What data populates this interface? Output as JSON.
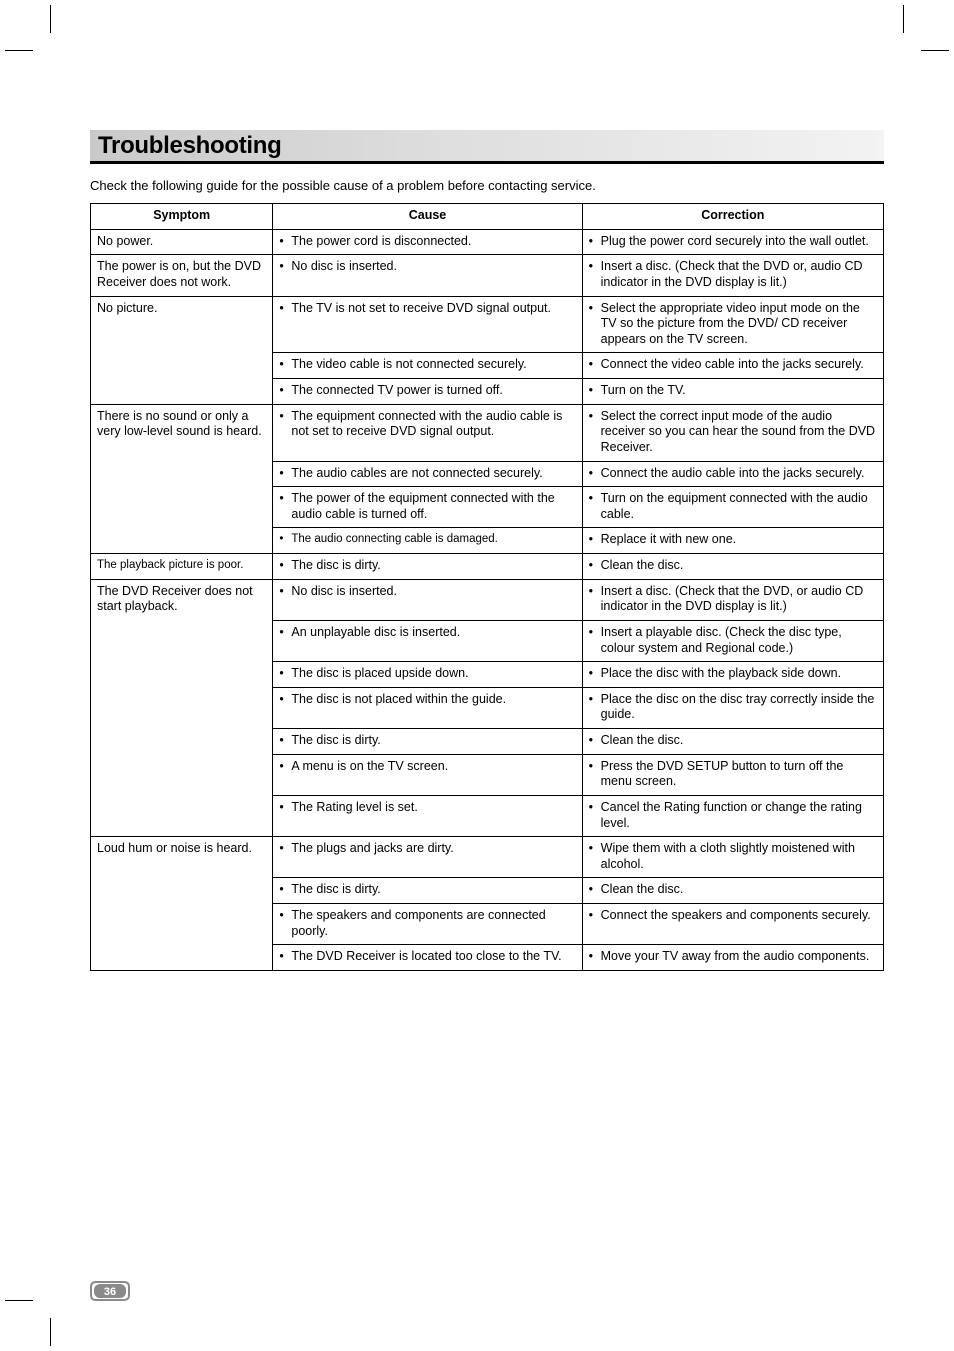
{
  "heading": "Troubleshooting",
  "intro": "Check the following guide for the possible cause of a problem before contacting service.",
  "columns": [
    "Symptom",
    "Cause",
    "Correction"
  ],
  "page_number": "36",
  "colors": {
    "heading_gradient_start": "#c9c9c9",
    "heading_gradient_end": "#f3f3f3",
    "heading_underline": "#000000",
    "border": "#000000",
    "text": "#000000",
    "background": "#ffffff",
    "badge_fill": "#8a8a8a"
  },
  "typography": {
    "heading_size_pt": 18,
    "body_size_pt": 9,
    "header_weight": "bold"
  },
  "rows": [
    {
      "symptom": "No power.",
      "symptom_rowspan": 1,
      "cause": "The power cord is disconnected.",
      "correction": "Plug the power cord securely into the wall outlet."
    },
    {
      "symptom": "The power is on, but the DVD Receiver does not work.",
      "symptom_rowspan": 1,
      "cause": "No disc is inserted.",
      "correction": "Insert a disc. (Check that the DVD or, audio CD indicator in the DVD display is lit.)"
    },
    {
      "symptom": "No picture.",
      "symptom_rowspan": 3,
      "cause": "The TV is not set to receive DVD signal output.",
      "correction": "Select the appropriate video input mode on the TV so the picture from the DVD/ CD receiver appears on the TV screen."
    },
    {
      "cause": "The video cable is not connected securely.",
      "correction": "Connect the video cable into the jacks securely."
    },
    {
      "cause": "The connected TV power is turned off.",
      "correction": "Turn on the TV."
    },
    {
      "symptom": "There is no sound or only a very low-level sound is heard.",
      "symptom_rowspan": 4,
      "cause": "The equipment connected with the audio cable is not set to receive DVD signal output.",
      "correction": "Select the correct input mode of the audio receiver so you can hear the sound from the DVD Receiver."
    },
    {
      "cause": "The audio cables are not connected securely.",
      "correction": "Connect the audio cable into the jacks securely."
    },
    {
      "cause": "The power of the equipment connected with the audio cable is turned off.",
      "correction": "Turn on the equipment connected with the audio cable."
    },
    {
      "cause": "The audio connecting cable is damaged.",
      "correction": "Replace it with new one."
    },
    {
      "symptom": "The playback picture is  poor.",
      "symptom_rowspan": 1,
      "cause": "The disc is dirty.",
      "correction": "Clean the disc."
    },
    {
      "symptom": "The DVD Receiver does not start playback.",
      "symptom_rowspan": 7,
      "cause": "No disc is inserted.",
      "correction": "Insert a disc. (Check that the DVD, or audio CD indicator in the DVD display is lit.)"
    },
    {
      "cause": "An unplayable disc is inserted.",
      "correction": "Insert a playable disc. (Check the disc type, colour system and Regional code.)"
    },
    {
      "cause": "The disc is placed upside down.",
      "correction": "Place the disc with the playback side down."
    },
    {
      "cause": "The disc is not placed within the guide.",
      "correction": "Place the disc on the disc tray correctly inside the guide."
    },
    {
      "cause": "The disc is dirty.",
      "correction": "Clean the disc."
    },
    {
      "cause": "A menu is on the TV screen.",
      "correction": "Press the DVD SETUP button to turn off the menu screen."
    },
    {
      "cause": "The Rating level is set.",
      "correction": "Cancel the Rating function or change the rating level."
    },
    {
      "symptom": "Loud hum or noise is heard.",
      "symptom_rowspan": 4,
      "cause": "The plugs and jacks are dirty.",
      "correction": "Wipe them with a cloth slightly moistened with alcohol."
    },
    {
      "cause": "The disc is dirty.",
      "correction": "Clean the disc."
    },
    {
      "cause": "The speakers and components are connected poorly.",
      "correction": "Connect the speakers and components securely."
    },
    {
      "cause": "The DVD Receiver is located too close to the TV.",
      "correction": "Move your TV away from the audio components."
    }
  ]
}
